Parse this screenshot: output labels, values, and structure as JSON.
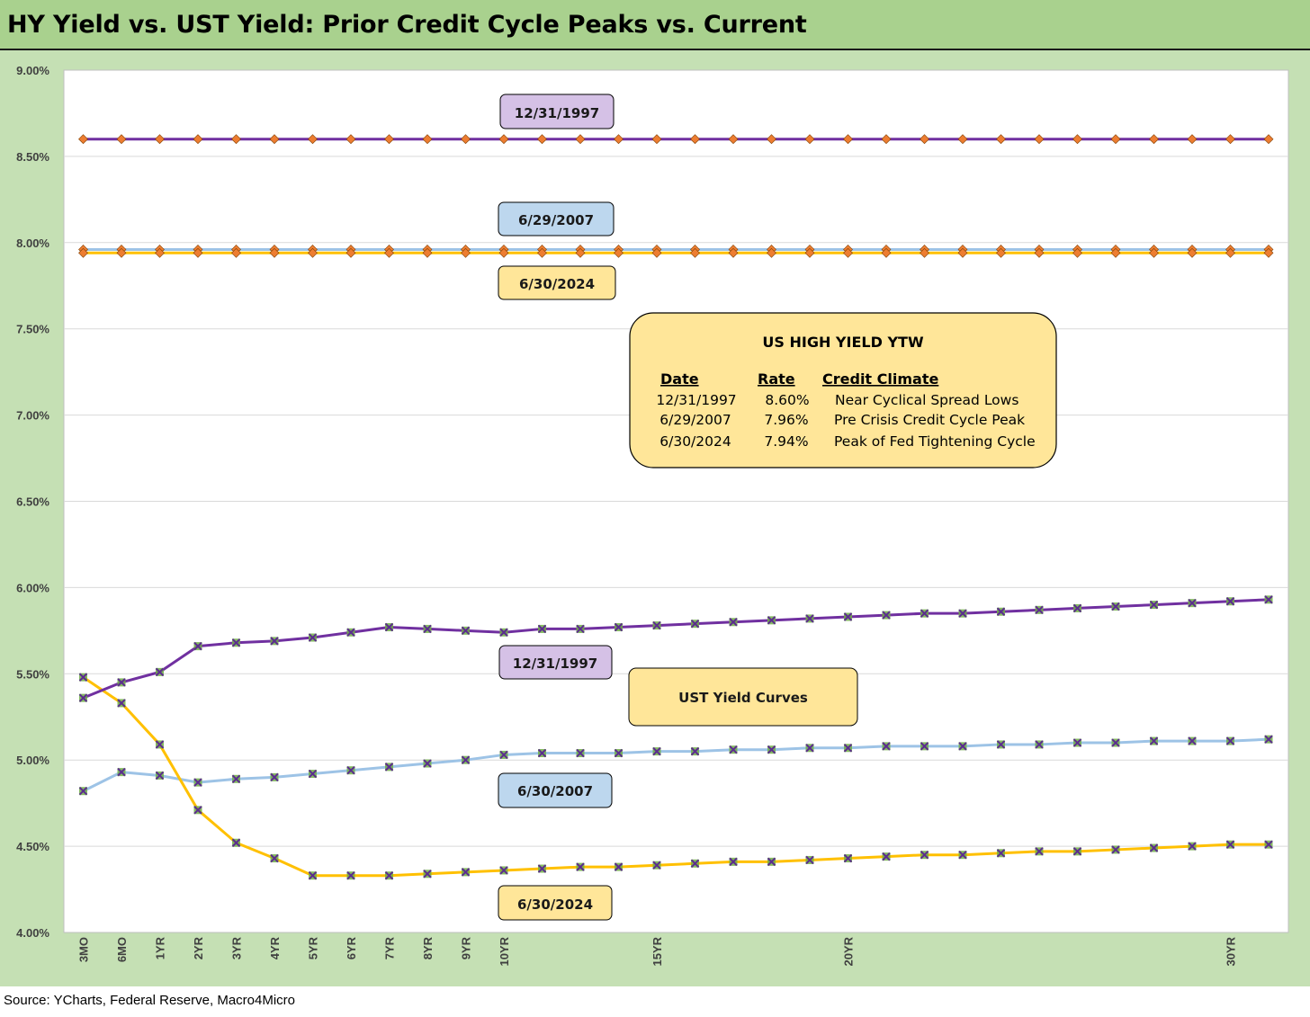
{
  "title": "HY Yield vs. UST Yield: Prior Credit Cycle Peaks vs. Current",
  "source": "Source: YCharts, Federal Reserve, Macro4Micro",
  "colors": {
    "title_bg": "#a9d18e",
    "frame_bg": "#c5e0b4",
    "purple": "#7030a0",
    "light_blue": "#9dc3e6",
    "gold": "#ffc000",
    "diamond": "#ed7d31",
    "x_marker": "#70ad47"
  },
  "chart_data": {
    "type": "line",
    "x": [
      "3MO",
      "6MO",
      "1YR",
      "2YR",
      "3YR",
      "4YR",
      "5YR",
      "6YR",
      "7YR",
      "8YR",
      "9YR",
      "10YR",
      "11YR",
      "12YR",
      "13YR",
      "14YR",
      "15YR",
      "16YR",
      "17YR",
      "18YR",
      "19YR",
      "20YR",
      "21YR",
      "22YR",
      "23YR",
      "24YR",
      "25YR",
      "26YR",
      "27YR",
      "28YR",
      "29YR",
      "30YR"
    ],
    "x_tick_labels": [
      "3MO",
      "6MO",
      "1YR",
      "2YR",
      "3YR",
      "4YR",
      "5YR",
      "6YR",
      "7YR",
      "8YR",
      "9YR",
      "10YR",
      "",
      "",
      "",
      "15YR",
      "",
      "",
      "",
      "",
      "20YR",
      "",
      "",
      "",
      "",
      "",
      "",
      "",
      "",
      "",
      "30YR"
    ],
    "ylim": [
      4.0,
      9.0
    ],
    "y_ticks": [
      "9.00%",
      "8.50%",
      "8.00%",
      "7.50%",
      "7.00%",
      "6.50%",
      "6.00%",
      "5.50%",
      "5.00%",
      "4.50%",
      "4.00%"
    ],
    "grid": true,
    "series": [
      {
        "name": "12/31/1997",
        "kind": "hy",
        "color": "#7030a0",
        "marker": "diamond",
        "values": [
          8.6,
          8.6,
          8.6,
          8.6,
          8.6,
          8.6,
          8.6,
          8.6,
          8.6,
          8.6,
          8.6,
          8.6,
          8.6,
          8.6,
          8.6,
          8.6,
          8.6,
          8.6,
          8.6,
          8.6,
          8.6,
          8.6,
          8.6,
          8.6,
          8.6,
          8.6,
          8.6,
          8.6,
          8.6,
          8.6,
          8.6,
          8.6
        ]
      },
      {
        "name": "6/29/2007",
        "kind": "hy",
        "color": "#9dc3e6",
        "marker": "diamond",
        "values": [
          7.96,
          7.96,
          7.96,
          7.96,
          7.96,
          7.96,
          7.96,
          7.96,
          7.96,
          7.96,
          7.96,
          7.96,
          7.96,
          7.96,
          7.96,
          7.96,
          7.96,
          7.96,
          7.96,
          7.96,
          7.96,
          7.96,
          7.96,
          7.96,
          7.96,
          7.96,
          7.96,
          7.96,
          7.96,
          7.96,
          7.96,
          7.96
        ]
      },
      {
        "name": "6/30/2024",
        "kind": "hy",
        "color": "#ffc000",
        "marker": "diamond",
        "values": [
          7.94,
          7.94,
          7.94,
          7.94,
          7.94,
          7.94,
          7.94,
          7.94,
          7.94,
          7.94,
          7.94,
          7.94,
          7.94,
          7.94,
          7.94,
          7.94,
          7.94,
          7.94,
          7.94,
          7.94,
          7.94,
          7.94,
          7.94,
          7.94,
          7.94,
          7.94,
          7.94,
          7.94,
          7.94,
          7.94,
          7.94,
          7.94
        ]
      },
      {
        "name": "12/31/1997",
        "kind": "ust",
        "color": "#7030a0",
        "marker": "x",
        "values": [
          5.36,
          5.45,
          5.51,
          5.66,
          5.68,
          5.69,
          5.71,
          5.74,
          5.77,
          5.76,
          5.75,
          5.74,
          5.76,
          5.76,
          5.77,
          5.78,
          5.79,
          5.8,
          5.81,
          5.82,
          5.83,
          5.84,
          5.85,
          5.85,
          5.86,
          5.87,
          5.88,
          5.89,
          5.9,
          5.91,
          5.92,
          5.93
        ]
      },
      {
        "name": "6/30/2007",
        "kind": "ust",
        "color": "#9dc3e6",
        "marker": "x",
        "values": [
          4.82,
          4.93,
          4.91,
          4.87,
          4.89,
          4.9,
          4.92,
          4.94,
          4.96,
          4.98,
          5.0,
          5.03,
          5.04,
          5.04,
          5.04,
          5.05,
          5.05,
          5.06,
          5.06,
          5.07,
          5.07,
          5.08,
          5.08,
          5.08,
          5.09,
          5.09,
          5.1,
          5.1,
          5.11,
          5.11,
          5.11,
          5.12
        ]
      },
      {
        "name": "6/30/2024",
        "kind": "ust",
        "color": "#ffc000",
        "marker": "x",
        "values": [
          5.48,
          5.33,
          5.09,
          4.71,
          4.52,
          4.43,
          4.33,
          4.33,
          4.33,
          4.34,
          4.35,
          4.36,
          4.37,
          4.38,
          4.38,
          4.39,
          4.4,
          4.41,
          4.41,
          4.42,
          4.43,
          4.44,
          4.45,
          4.45,
          4.46,
          4.47,
          4.47,
          4.48,
          4.49,
          4.5,
          4.51,
          4.51
        ]
      }
    ]
  },
  "callouts": {
    "hy_1997": "12/31/1997",
    "hy_2007": "6/29/2007",
    "hy_2024": "6/30/2024",
    "ust_1997": "12/31/1997",
    "ust_2007": "6/30/2007",
    "ust_2024": "6/30/2024",
    "ust_curves": "UST Yield Curves"
  },
  "info_box": {
    "title": "US HIGH YIELD YTW",
    "headers": [
      "Date",
      "Rate",
      "Credit Climate"
    ],
    "rows": [
      [
        "12/31/1997",
        "8.60%",
        "Near Cyclical Spread Lows"
      ],
      [
        "6/29/2007",
        "7.96%",
        "Pre Crisis Credit Cycle Peak"
      ],
      [
        "6/30/2024",
        "7.94%",
        "Peak of Fed Tightening Cycle"
      ]
    ]
  }
}
